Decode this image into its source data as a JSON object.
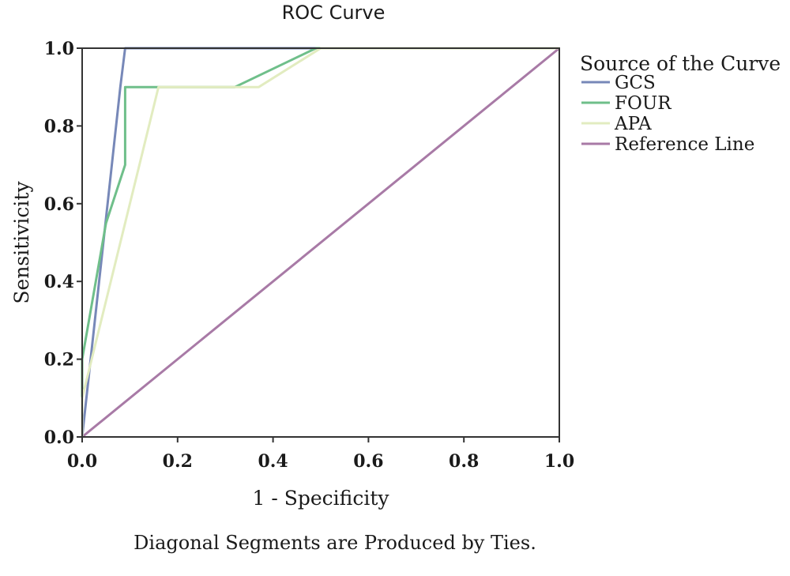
{
  "chart_data": {
    "type": "line",
    "title": "ROC Curve",
    "xlabel": "1 - Specificity",
    "ylabel": "Sensitivicity",
    "xlim": [
      0,
      1
    ],
    "ylim": [
      0,
      1
    ],
    "x_ticks": [
      "0.0",
      "0.2",
      "0.4",
      "0.6",
      "0.8",
      "1.0"
    ],
    "y_ticks": [
      "0.0",
      "0.2",
      "0.4",
      "0.6",
      "0.8",
      "1.0"
    ],
    "grid": false,
    "legend_title": "Source of the Curve",
    "legend_position": "right",
    "footnote": "Diagonal Segments are Produced by Ties.",
    "series": [
      {
        "name": "GCS",
        "color": "#7788b8",
        "points": [
          [
            0,
            0
          ],
          [
            0.08,
            0.9
          ],
          [
            0.09,
            1.0
          ],
          [
            1.0,
            1.0
          ]
        ]
      },
      {
        "name": "FOUR",
        "color": "#6fbf8a",
        "points": [
          [
            0,
            0
          ],
          [
            0,
            0.2
          ],
          [
            0.05,
            0.55
          ],
          [
            0.09,
            0.7
          ],
          [
            0.09,
            0.9
          ],
          [
            0.16,
            0.9
          ],
          [
            0.32,
            0.9
          ],
          [
            0.49,
            1.0
          ],
          [
            1.0,
            1.0
          ]
        ]
      },
      {
        "name": "APA",
        "color": "#e2ecc0",
        "points": [
          [
            0,
            0
          ],
          [
            0,
            0.1
          ],
          [
            0.12,
            0.7
          ],
          [
            0.16,
            0.9
          ],
          [
            0.37,
            0.9
          ],
          [
            0.5,
            1.0
          ],
          [
            1.0,
            1.0
          ]
        ]
      },
      {
        "name": "Reference Line",
        "color": "#a87aa6",
        "points": [
          [
            0,
            0
          ],
          [
            1.0,
            1.0
          ]
        ]
      }
    ]
  }
}
